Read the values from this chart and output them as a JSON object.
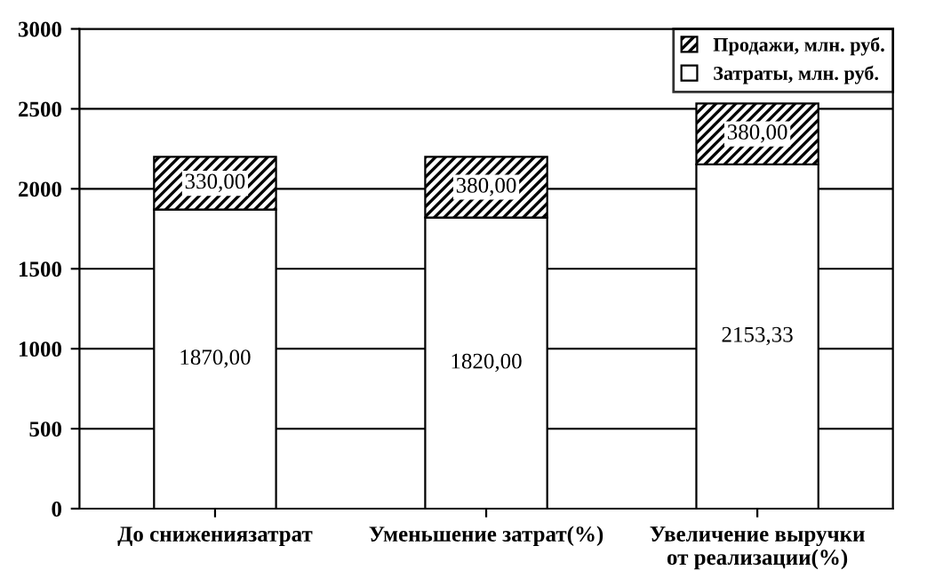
{
  "chart_data": {
    "type": "bar",
    "stacked": true,
    "categories": [
      "До снижениязатрат",
      "Уменьшение затрат(%)",
      "Увеличение выручки\nот реализации(%)"
    ],
    "series": [
      {
        "name": "Затраты, млн. руб.",
        "color": "#ffffff",
        "values": [
          1870,
          1820,
          2153.33
        ],
        "value_labels": [
          "1870,00",
          "1820,00",
          "2153,33"
        ]
      },
      {
        "name": "Продажи, млн. руб.",
        "color": "#000000",
        "values": [
          330,
          380,
          380
        ],
        "value_labels": [
          "330,00",
          "380,00",
          "380,00"
        ]
      }
    ],
    "ylim": [
      0,
      3000
    ],
    "yticks": [
      0,
      500,
      1000,
      1500,
      2000,
      2500,
      3000
    ],
    "grid": "y",
    "legend": "top right"
  }
}
